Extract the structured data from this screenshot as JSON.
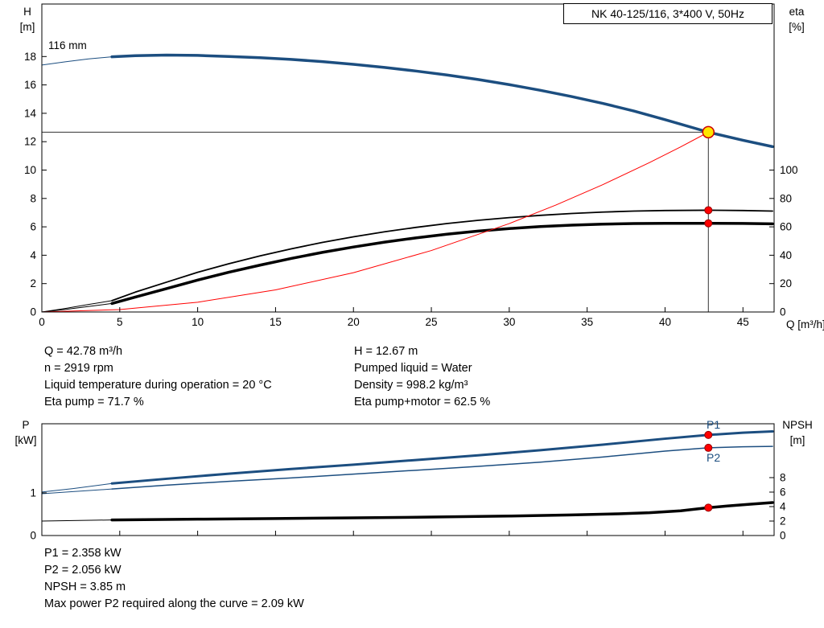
{
  "header": {
    "title_box": "NK 40-125/116, 3*400 V, 50Hz"
  },
  "colors": {
    "curve_blue": "#1c4e80",
    "system_red": "#ff0000",
    "duty_yellow": "#ffe600",
    "curve_black": "#000000"
  },
  "chart_data": [
    {
      "id": "hq-eta-chart",
      "type": "line",
      "impeller_label": "116 mm",
      "xlabel": "Q [m³/h]",
      "y_left_label": "H",
      "y_left_unit": "[m]",
      "y_right_label": "eta",
      "y_right_unit": "[%]",
      "x_range": [
        0,
        47
      ],
      "y_left_range": [
        0,
        21.7
      ],
      "y_right_range": [
        0,
        217
      ],
      "x_ticks": [
        0,
        5,
        10,
        15,
        20,
        25,
        30,
        35,
        40,
        45
      ],
      "x_tick_labels": true,
      "y_left_ticks": [
        0,
        2,
        4,
        6,
        8,
        10,
        12,
        14,
        16,
        18
      ],
      "y_right_ticks": [
        0,
        20,
        40,
        60,
        80,
        100
      ],
      "duty_lines": [
        {
          "axis": "left",
          "pts": [
            [
              0,
              12.67
            ],
            [
              42.78,
              12.67
            ]
          ]
        },
        {
          "axis": "left",
          "pts": [
            [
              42.78,
              12.67
            ],
            [
              42.78,
              0
            ]
          ]
        }
      ],
      "series": [
        {
          "name": "pump-curve-low-flow",
          "axis": "left",
          "color": "#1c4e80",
          "width": 1,
          "points": [
            [
              0,
              17.4
            ],
            [
              1.5,
              17.63
            ],
            [
              3,
              17.83
            ],
            [
              4.5,
              17.98
            ]
          ]
        },
        {
          "name": "pump-curve-116mm",
          "axis": "left",
          "color": "#1c4e80",
          "width": 3.5,
          "points": [
            [
              4.5,
              17.98
            ],
            [
              6,
              18.06
            ],
            [
              8,
              18.1
            ],
            [
              10,
              18.08
            ],
            [
              12,
              18.0
            ],
            [
              14,
              17.92
            ],
            [
              16,
              17.8
            ],
            [
              18,
              17.64
            ],
            [
              20,
              17.45
            ],
            [
              22,
              17.23
            ],
            [
              24,
              16.98
            ],
            [
              26,
              16.7
            ],
            [
              28,
              16.38
            ],
            [
              30,
              16.02
            ],
            [
              32,
              15.62
            ],
            [
              34,
              15.18
            ],
            [
              36,
              14.7
            ],
            [
              38,
              14.16
            ],
            [
              40,
              13.55
            ],
            [
              42.78,
              12.67
            ],
            [
              45,
              12.1
            ],
            [
              46.9,
              11.65
            ]
          ]
        },
        {
          "name": "eta-pump-low-flow",
          "axis": "right",
          "color": "#000000",
          "width": 1,
          "points": [
            [
              0,
              0
            ],
            [
              1.5,
              2.5
            ],
            [
              3,
              5.3
            ],
            [
              4.5,
              8
            ]
          ]
        },
        {
          "name": "eta-pump-curve",
          "axis": "right",
          "color": "#000000",
          "width": 1.8,
          "points": [
            [
              4.5,
              8
            ],
            [
              6,
              14
            ],
            [
              8,
              21
            ],
            [
              10,
              28
            ],
            [
              12,
              34
            ],
            [
              14,
              39.5
            ],
            [
              16,
              44.5
            ],
            [
              18,
              49
            ],
            [
              20,
              53
            ],
            [
              22,
              56.5
            ],
            [
              24,
              59.6
            ],
            [
              26,
              62.3
            ],
            [
              28,
              64.6
            ],
            [
              30,
              66.5
            ],
            [
              32,
              68.1
            ],
            [
              34,
              69.4
            ],
            [
              36,
              70.4
            ],
            [
              38,
              71.1
            ],
            [
              40,
              71.5
            ],
            [
              42.78,
              71.7
            ],
            [
              45,
              71.5
            ],
            [
              46.9,
              71.1
            ]
          ]
        },
        {
          "name": "eta-pump-motor-low-flow",
          "axis": "right",
          "color": "#000000",
          "width": 1,
          "points": [
            [
              0,
              0
            ],
            [
              1.5,
              1.8
            ],
            [
              3,
              3.9
            ],
            [
              4.5,
              6
            ]
          ]
        },
        {
          "name": "eta-pump-motor-curve",
          "axis": "right",
          "color": "#000000",
          "width": 3.5,
          "points": [
            [
              4.5,
              6
            ],
            [
              6,
              10.5
            ],
            [
              8,
              16.5
            ],
            [
              10,
              22.5
            ],
            [
              12,
              28
            ],
            [
              14,
              33
            ],
            [
              16,
              37.7
            ],
            [
              18,
              42
            ],
            [
              20,
              45.8
            ],
            [
              22,
              49.2
            ],
            [
              24,
              52.2
            ],
            [
              26,
              54.8
            ],
            [
              28,
              57
            ],
            [
              30,
              58.8
            ],
            [
              32,
              60.2
            ],
            [
              34,
              61.2
            ],
            [
              36,
              61.9
            ],
            [
              38,
              62.3
            ],
            [
              40,
              62.45
            ],
            [
              42.78,
              62.5
            ],
            [
              45,
              62.4
            ],
            [
              46.9,
              62.1
            ]
          ]
        },
        {
          "name": "system-curve",
          "axis": "left",
          "color": "#ff0000",
          "width": 1,
          "points": [
            [
              0,
              0
            ],
            [
              5,
              0.17
            ],
            [
              10,
              0.69
            ],
            [
              15,
              1.56
            ],
            [
              20,
              2.77
            ],
            [
              25,
              4.33
            ],
            [
              30,
              6.23
            ],
            [
              33,
              7.54
            ],
            [
              36,
              8.97
            ],
            [
              39,
              10.53
            ],
            [
              41,
              11.63
            ],
            [
              42.78,
              12.67
            ]
          ]
        }
      ],
      "markers": [
        {
          "name": "duty-point",
          "axis": "left",
          "q": 42.78,
          "v": 12.67,
          "r": 7,
          "fill": "#ffe600",
          "stroke": "#cc0000",
          "sw": 1.5
        },
        {
          "name": "eta-pump-duty-point",
          "axis": "right",
          "q": 42.78,
          "v": 71.7,
          "r": 4.5,
          "fill": "#ff0000",
          "stroke": "#990000",
          "sw": 1
        },
        {
          "name": "eta-pump-motor-duty-point",
          "axis": "right",
          "q": 42.78,
          "v": 62.5,
          "r": 4.5,
          "fill": "#ff0000",
          "stroke": "#990000",
          "sw": 1
        }
      ]
    },
    {
      "id": "power-npsh-chart",
      "type": "line",
      "y_left_label": "P",
      "y_left_unit": "[kW]",
      "y_right_label": "NPSH",
      "y_right_unit": "[m]",
      "x_range": [
        0,
        47
      ],
      "y_left_range": [
        0,
        2.62
      ],
      "y_right_range": [
        0,
        15.44
      ],
      "x_ticks": [
        0,
        5,
        10,
        15,
        20,
        25,
        30,
        35,
        40,
        45
      ],
      "x_tick_labels": false,
      "y_left_ticks": [
        0,
        1
      ],
      "y_right_ticks": [
        0,
        2,
        4,
        6,
        8
      ],
      "curve_labels": [
        "P1",
        "P2"
      ],
      "series": [
        {
          "name": "p1-low-flow",
          "axis": "left",
          "color": "#1c4e80",
          "width": 1,
          "points": [
            [
              0,
              1.02
            ],
            [
              2,
              1.1
            ],
            [
              4.5,
              1.22
            ]
          ]
        },
        {
          "name": "p1-curve",
          "axis": "left",
          "color": "#1c4e80",
          "width": 3,
          "points": [
            [
              4.5,
              1.22
            ],
            [
              8,
              1.33
            ],
            [
              12,
              1.45
            ],
            [
              16,
              1.56
            ],
            [
              20,
              1.66
            ],
            [
              24,
              1.77
            ],
            [
              28,
              1.88
            ],
            [
              32,
              2.0
            ],
            [
              36,
              2.13
            ],
            [
              40,
              2.27
            ],
            [
              42.78,
              2.358
            ],
            [
              45,
              2.41
            ],
            [
              46.9,
              2.44
            ]
          ]
        },
        {
          "name": "p2-low-flow",
          "axis": "left",
          "color": "#1c4e80",
          "width": 1,
          "points": [
            [
              0,
              0.98
            ],
            [
              2,
              1.03
            ],
            [
              4.5,
              1.09
            ]
          ]
        },
        {
          "name": "p2-curve",
          "axis": "left",
          "color": "#1c4e80",
          "width": 1.5,
          "points": [
            [
              4.5,
              1.09
            ],
            [
              8,
              1.18
            ],
            [
              12,
              1.27
            ],
            [
              16,
              1.35
            ],
            [
              20,
              1.44
            ],
            [
              24,
              1.53
            ],
            [
              28,
              1.62
            ],
            [
              32,
              1.72
            ],
            [
              36,
              1.84
            ],
            [
              40,
              1.98
            ],
            [
              42.78,
              2.056
            ],
            [
              45,
              2.08
            ],
            [
              46.9,
              2.09
            ]
          ]
        },
        {
          "name": "npsh-low-flow",
          "axis": "right",
          "color": "#000000",
          "width": 1,
          "points": [
            [
              0,
              2.0
            ],
            [
              2,
              2.07
            ],
            [
              4.5,
              2.15
            ]
          ]
        },
        {
          "name": "npsh-curve",
          "axis": "right",
          "color": "#000000",
          "width": 3.5,
          "points": [
            [
              4.5,
              2.15
            ],
            [
              10,
              2.26
            ],
            [
              15,
              2.35
            ],
            [
              20,
              2.44
            ],
            [
              25,
              2.55
            ],
            [
              30,
              2.69
            ],
            [
              34,
              2.85
            ],
            [
              37,
              3.0
            ],
            [
              39,
              3.15
            ],
            [
              41,
              3.42
            ],
            [
              42.78,
              3.85
            ],
            [
              44,
              4.08
            ],
            [
              45.5,
              4.33
            ],
            [
              46.9,
              4.55
            ]
          ]
        }
      ],
      "markers": [
        {
          "name": "p1-duty-point",
          "axis": "left",
          "q": 42.78,
          "v": 2.358,
          "r": 4.5,
          "fill": "#ff0000",
          "stroke": "#990000",
          "sw": 1
        },
        {
          "name": "p2-duty-point",
          "axis": "left",
          "q": 42.78,
          "v": 2.056,
          "r": 4.5,
          "fill": "#ff0000",
          "stroke": "#990000",
          "sw": 1
        },
        {
          "name": "npsh-duty-point",
          "axis": "right",
          "q": 42.78,
          "v": 3.85,
          "r": 4.5,
          "fill": "#ff0000",
          "stroke": "#990000",
          "sw": 1
        }
      ]
    }
  ],
  "between_info": {
    "left": [
      "Q = 42.78 m³/h",
      "n = 2919 rpm",
      "Liquid temperature during operation = 20 °C",
      "Eta pump = 71.7 %"
    ],
    "right": [
      "H = 12.67 m",
      "Pumped liquid = Water",
      "Density = 998.2 kg/m³",
      "Eta pump+motor = 62.5 %"
    ]
  },
  "bottom_info": [
    "P1 = 2.358 kW",
    "P2 = 2.056 kW",
    "NPSH = 3.85 m",
    "Max power P2 required along the curve = 2.09 kW"
  ]
}
